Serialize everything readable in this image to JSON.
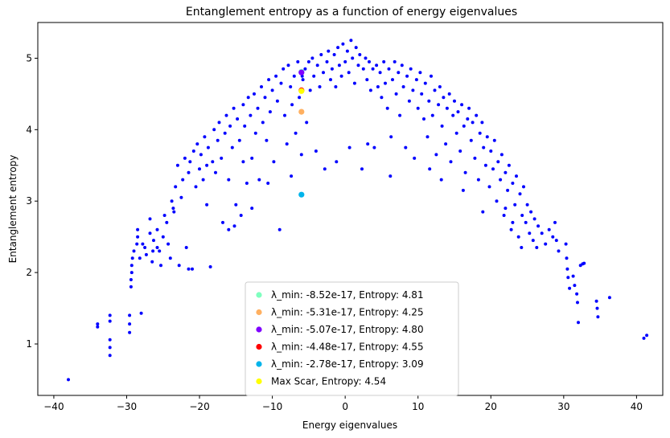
{
  "chart_data": {
    "type": "scatter",
    "title": "Entanglement entropy as a function of energy eigenvalues",
    "xlabel": "Energy eigenvalues",
    "ylabel": "Entanglement entropy",
    "xlim": [
      -42.2,
      43.6
    ],
    "ylim": [
      0.28,
      5.5
    ],
    "xticks": [
      -40,
      -30,
      -20,
      -10,
      0,
      10,
      20,
      30,
      40
    ],
    "yticks": [
      1,
      2,
      3,
      4,
      5
    ],
    "grid": false,
    "legend_position": "lower-center",
    "bulk_series": {
      "color": "#0000ff",
      "points": [
        [
          -38.0,
          0.5
        ],
        [
          -34.0,
          1.28
        ],
        [
          -34.0,
          1.24
        ],
        [
          -32.3,
          1.4
        ],
        [
          -32.3,
          1.32
        ],
        [
          -32.3,
          1.06
        ],
        [
          -32.3,
          0.95
        ],
        [
          -32.3,
          0.84
        ],
        [
          -29.6,
          1.4
        ],
        [
          -29.6,
          1.28
        ],
        [
          -29.6,
          1.16
        ],
        [
          -29.4,
          1.8
        ],
        [
          -29.4,
          1.9
        ],
        [
          -29.3,
          2.0
        ],
        [
          -29.3,
          2.1
        ],
        [
          -29.2,
          2.2
        ],
        [
          -29.0,
          2.3
        ],
        [
          -28.6,
          2.4
        ],
        [
          -28.5,
          2.5
        ],
        [
          -28.5,
          2.6
        ],
        [
          -28.2,
          2.2
        ],
        [
          -28.0,
          1.43
        ],
        [
          -27.8,
          2.4
        ],
        [
          -27.5,
          2.35
        ],
        [
          -27.3,
          2.25
        ],
        [
          -26.8,
          2.75
        ],
        [
          -26.5,
          2.15
        ],
        [
          -26.4,
          2.3
        ],
        [
          -26.3,
          2.45
        ],
        [
          -25.8,
          2.6
        ],
        [
          -25.5,
          2.3
        ],
        [
          -25.3,
          2.1
        ],
        [
          -25.0,
          2.5
        ],
        [
          -24.8,
          2.8
        ],
        [
          -24.5,
          2.7
        ],
        [
          -24.3,
          2.4
        ],
        [
          -24.0,
          2.2
        ],
        [
          -23.8,
          3.0
        ],
        [
          -23.5,
          2.85
        ],
        [
          -23.3,
          3.2
        ],
        [
          -23.0,
          3.5
        ],
        [
          -22.8,
          2.1
        ],
        [
          -22.5,
          3.05
        ],
        [
          -22.3,
          3.3
        ],
        [
          -22.0,
          3.6
        ],
        [
          -21.8,
          2.35
        ],
        [
          -21.5,
          3.4
        ],
        [
          -21.3,
          3.55
        ],
        [
          -21.0,
          2.05
        ],
        [
          -20.8,
          3.7
        ],
        [
          -20.5,
          3.2
        ],
        [
          -20.3,
          3.8
        ],
        [
          -20.0,
          3.45
        ],
        [
          -19.8,
          3.65
        ],
        [
          -19.5,
          3.3
        ],
        [
          -19.3,
          3.9
        ],
        [
          -19.0,
          3.5
        ],
        [
          -18.8,
          3.75
        ],
        [
          -18.5,
          2.08
        ],
        [
          -18.2,
          3.55
        ],
        [
          -18.0,
          4.0
        ],
        [
          -17.8,
          3.4
        ],
        [
          -17.5,
          3.85
        ],
        [
          -17.3,
          4.1
        ],
        [
          -17.0,
          3.6
        ],
        [
          -16.8,
          2.7
        ],
        [
          -16.5,
          3.95
        ],
        [
          -16.3,
          4.2
        ],
        [
          -16.0,
          3.3
        ],
        [
          -15.8,
          4.05
        ],
        [
          -15.5,
          3.75
        ],
        [
          -15.3,
          4.3
        ],
        [
          -15.0,
          2.95
        ],
        [
          -14.8,
          4.15
        ],
        [
          -14.5,
          3.85
        ],
        [
          -14.3,
          2.8
        ],
        [
          -14.0,
          4.35
        ],
        [
          -13.8,
          4.05
        ],
        [
          -13.5,
          3.25
        ],
        [
          -13.3,
          4.45
        ],
        [
          -13.0,
          4.2
        ],
        [
          -12.8,
          3.6
        ],
        [
          -12.5,
          4.5
        ],
        [
          -12.3,
          3.95
        ],
        [
          -12.0,
          4.3
        ],
        [
          -11.8,
          3.3
        ],
        [
          -11.5,
          4.6
        ],
        [
          -11.3,
          4.1
        ],
        [
          -11.0,
          4.45
        ],
        [
          -10.8,
          3.85
        ],
        [
          -10.5,
          4.7
        ],
        [
          -10.3,
          4.25
        ],
        [
          -10.0,
          4.55
        ],
        [
          -9.8,
          3.55
        ],
        [
          -9.5,
          4.75
        ],
        [
          -9.3,
          4.4
        ],
        [
          -9.0,
          2.6
        ],
        [
          -8.8,
          4.65
        ],
        [
          -8.5,
          4.85
        ],
        [
          -8.3,
          4.2
        ],
        [
          -8.0,
          3.8
        ],
        [
          -7.8,
          4.9
        ],
        [
          -7.5,
          4.6
        ],
        [
          -7.3,
          4.35
        ],
        [
          -7.0,
          4.75
        ],
        [
          -6.8,
          3.95
        ],
        [
          -6.5,
          4.95
        ],
        [
          -6.3,
          4.45
        ],
        [
          -6.0,
          3.65
        ],
        [
          -5.8,
          4.7
        ],
        [
          -5.5,
          4.85
        ],
        [
          -5.3,
          4.1
        ],
        [
          -5.0,
          4.95
        ],
        [
          -4.8,
          4.55
        ],
        [
          -4.5,
          5.0
        ],
        [
          -4.3,
          4.75
        ],
        [
          -4.0,
          3.7
        ],
        [
          -3.8,
          4.9
        ],
        [
          -3.5,
          4.6
        ],
        [
          -3.3,
          5.05
        ],
        [
          -3.0,
          4.8
        ],
        [
          -2.8,
          3.45
        ],
        [
          -2.5,
          4.95
        ],
        [
          -2.3,
          5.1
        ],
        [
          -2.0,
          4.7
        ],
        [
          -1.8,
          4.85
        ],
        [
          -1.5,
          5.05
        ],
        [
          -1.3,
          4.6
        ],
        [
          -1.0,
          5.15
        ],
        [
          -0.8,
          4.9
        ],
        [
          -0.5,
          4.75
        ],
        [
          -0.3,
          5.2
        ],
        [
          0.0,
          4.95
        ],
        [
          0.3,
          5.1
        ],
        [
          0.5,
          4.8
        ],
        [
          0.8,
          5.25
        ],
        [
          1.0,
          5.0
        ],
        [
          1.3,
          4.65
        ],
        [
          1.5,
          5.15
        ],
        [
          1.8,
          4.9
        ],
        [
          2.0,
          5.05
        ],
        [
          2.3,
          3.45
        ],
        [
          2.5,
          4.85
        ],
        [
          2.8,
          5.0
        ],
        [
          3.0,
          4.7
        ],
        [
          3.3,
          4.95
        ],
        [
          3.5,
          4.55
        ],
        [
          3.8,
          4.85
        ],
        [
          4.0,
          3.75
        ],
        [
          4.3,
          4.9
        ],
        [
          4.5,
          4.6
        ],
        [
          4.8,
          4.8
        ],
        [
          5.0,
          4.45
        ],
        [
          5.3,
          4.95
        ],
        [
          5.5,
          4.65
        ],
        [
          5.8,
          4.3
        ],
        [
          6.0,
          4.85
        ],
        [
          6.3,
          3.9
        ],
        [
          6.5,
          4.7
        ],
        [
          6.8,
          4.95
        ],
        [
          7.0,
          4.5
        ],
        [
          7.3,
          4.8
        ],
        [
          7.5,
          4.2
        ],
        [
          7.8,
          4.9
        ],
        [
          8.0,
          4.6
        ],
        [
          8.3,
          3.75
        ],
        [
          8.5,
          4.75
        ],
        [
          8.8,
          4.4
        ],
        [
          9.0,
          4.85
        ],
        [
          9.3,
          4.55
        ],
        [
          9.5,
          3.6
        ],
        [
          9.8,
          4.7
        ],
        [
          10.0,
          4.3
        ],
        [
          10.3,
          4.8
        ],
        [
          10.5,
          4.5
        ],
        [
          10.8,
          4.15
        ],
        [
          11.0,
          4.65
        ],
        [
          11.3,
          3.9
        ],
        [
          11.5,
          4.4
        ],
        [
          11.8,
          4.75
        ],
        [
          12.0,
          4.2
        ],
        [
          12.3,
          4.55
        ],
        [
          12.5,
          3.65
        ],
        [
          12.8,
          4.35
        ],
        [
          13.0,
          4.6
        ],
        [
          13.3,
          4.05
        ],
        [
          13.5,
          4.45
        ],
        [
          13.8,
          3.8
        ],
        [
          14.0,
          4.3
        ],
        [
          14.3,
          4.5
        ],
        [
          14.5,
          3.55
        ],
        [
          14.8,
          4.2
        ],
        [
          15.0,
          4.4
        ],
        [
          15.3,
          3.95
        ],
        [
          15.5,
          4.25
        ],
        [
          15.8,
          3.7
        ],
        [
          16.0,
          4.35
        ],
        [
          16.3,
          4.05
        ],
        [
          16.5,
          3.4
        ],
        [
          16.8,
          4.15
        ],
        [
          17.0,
          4.3
        ],
        [
          17.3,
          3.85
        ],
        [
          17.5,
          4.1
        ],
        [
          17.8,
          3.6
        ],
        [
          18.0,
          4.2
        ],
        [
          18.3,
          3.3
        ],
        [
          18.5,
          3.95
        ],
        [
          18.8,
          4.1
        ],
        [
          19.0,
          3.75
        ],
        [
          19.3,
          3.5
        ],
        [
          19.5,
          3.9
        ],
        [
          19.8,
          3.2
        ],
        [
          20.0,
          3.7
        ],
        [
          20.3,
          3.45
        ],
        [
          20.5,
          3.85
        ],
        [
          20.8,
          3.0
        ],
        [
          21.0,
          3.55
        ],
        [
          21.3,
          3.3
        ],
        [
          21.5,
          3.65
        ],
        [
          21.8,
          2.8
        ],
        [
          22.0,
          3.4
        ],
        [
          22.3,
          3.15
        ],
        [
          22.5,
          3.5
        ],
        [
          22.8,
          2.6
        ],
        [
          23.0,
          3.25
        ],
        [
          23.3,
          2.95
        ],
        [
          23.5,
          3.35
        ],
        [
          23.8,
          2.5
        ],
        [
          24.0,
          3.1
        ],
        [
          24.3,
          2.8
        ],
        [
          24.5,
          3.2
        ],
        [
          24.8,
          2.7
        ],
        [
          25.0,
          2.95
        ],
        [
          25.3,
          2.55
        ],
        [
          25.5,
          2.85
        ],
        [
          25.8,
          2.45
        ],
        [
          26.0,
          2.75
        ],
        [
          26.3,
          2.35
        ],
        [
          26.5,
          2.65
        ],
        [
          27.0,
          2.55
        ],
        [
          27.5,
          2.4
        ],
        [
          28.0,
          2.6
        ],
        [
          28.5,
          2.5
        ],
        [
          28.8,
          2.7
        ],
        [
          29.0,
          2.45
        ],
        [
          29.3,
          2.3
        ],
        [
          30.3,
          2.4
        ],
        [
          30.4,
          2.2
        ],
        [
          30.5,
          2.05
        ],
        [
          30.6,
          1.93
        ],
        [
          30.8,
          1.78
        ],
        [
          31.3,
          1.95
        ],
        [
          31.5,
          1.82
        ],
        [
          31.8,
          1.7
        ],
        [
          31.9,
          1.58
        ],
        [
          32.0,
          1.3
        ],
        [
          32.3,
          2.1
        ],
        [
          32.6,
          2.12
        ],
        [
          32.8,
          2.13
        ],
        [
          34.5,
          1.6
        ],
        [
          34.6,
          1.5
        ],
        [
          34.7,
          1.38
        ],
        [
          36.3,
          1.65
        ],
        [
          41.0,
          1.08
        ],
        [
          41.4,
          1.12
        ],
        [
          -21.5,
          2.05
        ],
        [
          -15.2,
          2.65
        ],
        [
          -14.0,
          3.55
        ],
        [
          -10.6,
          3.25
        ],
        [
          -7.4,
          3.35
        ],
        [
          -5.9,
          4.75
        ],
        [
          6.2,
          3.35
        ],
        [
          11.6,
          3.45
        ],
        [
          13.2,
          3.3
        ],
        [
          16.2,
          3.15
        ],
        [
          18.9,
          2.85
        ],
        [
          22.0,
          2.9
        ],
        [
          23.0,
          2.7
        ],
        [
          24.2,
          2.35
        ],
        [
          -23.6,
          2.9
        ],
        [
          -25.8,
          2.35
        ],
        [
          -26.8,
          2.55
        ],
        [
          -19.0,
          2.95
        ],
        [
          -16.0,
          2.6
        ],
        [
          -12.8,
          2.9
        ],
        [
          0.6,
          3.75
        ],
        [
          -1.2,
          3.55
        ],
        [
          3.1,
          3.8
        ]
      ]
    },
    "highlighted_points": [
      {
        "label": "λ_min: -8.52e-17, Entropy: 4.81",
        "x": -6.0,
        "y": 4.81,
        "color": "#7fffbf"
      },
      {
        "label": "λ_min: -5.31e-17, Entropy: 4.25",
        "x": -6.0,
        "y": 4.25,
        "color": "#ffb060"
      },
      {
        "label": "λ_min: -5.07e-17, Entropy: 4.80",
        "x": -6.0,
        "y": 4.8,
        "color": "#8000ff"
      },
      {
        "label": "λ_min: -4.48e-17, Entropy: 4.55",
        "x": -6.0,
        "y": 4.55,
        "color": "#ff0000"
      },
      {
        "label": "λ_min: -2.78e-17, Entropy: 3.09",
        "x": -6.0,
        "y": 3.09,
        "color": "#00b4eb"
      },
      {
        "label": "Max Scar, Entropy: 4.54",
        "x": -6.0,
        "y": 4.54,
        "color": "#ffff00"
      }
    ]
  }
}
